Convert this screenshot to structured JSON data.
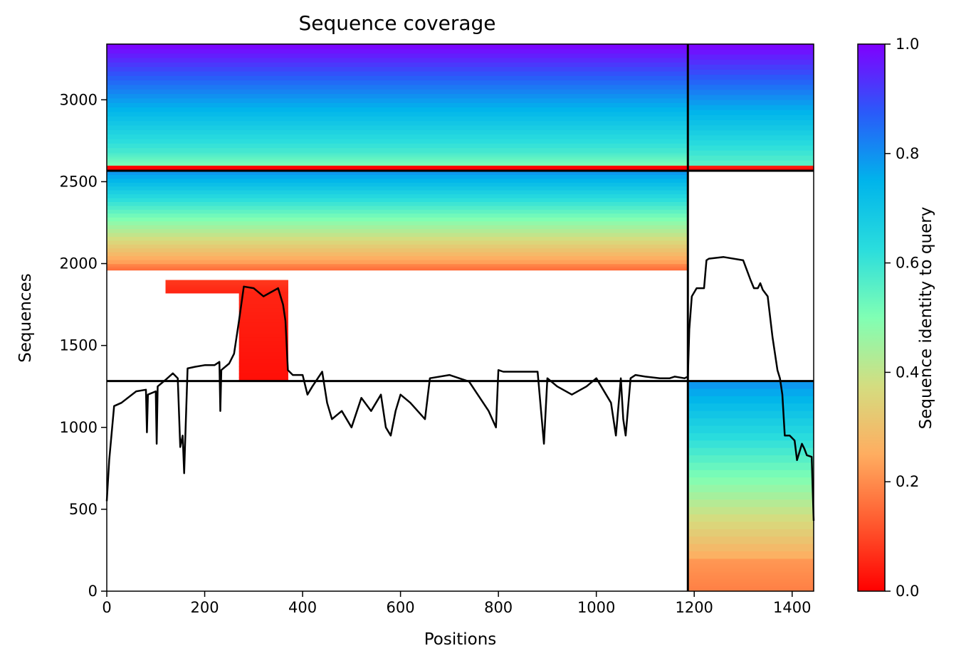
{
  "chart_data": {
    "type": "heatmap",
    "title": "Sequence coverage",
    "xlabel": "Positions",
    "ylabel": "Sequences",
    "xlim": [
      0,
      1444
    ],
    "ylim": [
      0,
      3340
    ],
    "xticks": [
      "0",
      "200",
      "400",
      "600",
      "800",
      "1000",
      "1200",
      "1400"
    ],
    "yticks": [
      "0",
      "500",
      "1000",
      "1500",
      "2000",
      "2500",
      "3000"
    ],
    "colorbar": {
      "label": "Sequence identity to query",
      "ticks": [
        "0.0",
        "0.2",
        "0.4",
        "0.6",
        "0.8",
        "1.0"
      ],
      "range": [
        0,
        1
      ],
      "colormap": "rainbow"
    },
    "chain_boundaries_x": [
      1187
    ],
    "chain_boundaries_y": [
      1283,
      2567
    ],
    "coverage_blocks": [
      {
        "x0": 0,
        "x1": 1187,
        "y0": 2567,
        "y1": 2600,
        "identity_lo": 0.0,
        "identity_hi": 0.0
      },
      {
        "x0": 0,
        "x1": 1187,
        "y0": 2600,
        "y1": 2680,
        "identity_lo": 0.5,
        "identity_hi": 0.58
      },
      {
        "x0": 0,
        "x1": 1187,
        "y0": 2680,
        "y1": 3340,
        "identity_lo": 0.58,
        "identity_hi": 1.0
      },
      {
        "x0": 1187,
        "x1": 1444,
        "y0": 2567,
        "y1": 2600,
        "identity_lo": 0.0,
        "identity_hi": 0.05
      },
      {
        "x0": 1187,
        "x1": 1444,
        "y0": 2600,
        "y1": 3340,
        "identity_lo": 0.55,
        "identity_hi": 1.0
      },
      {
        "x0": 0,
        "x1": 1187,
        "y0": 1960,
        "y1": 2000,
        "identity_lo": 0.15,
        "identity_hi": 0.2
      },
      {
        "x0": 0,
        "x1": 1187,
        "y0": 2000,
        "y1": 2567,
        "identity_lo": 0.22,
        "identity_hi": 0.8
      },
      {
        "x0": 120,
        "x1": 370,
        "y0": 1820,
        "y1": 1900,
        "identity_lo": 0.05,
        "identity_hi": 0.08
      },
      {
        "x0": 270,
        "x1": 370,
        "y0": 1283,
        "y1": 1820,
        "identity_lo": 0.02,
        "identity_hi": 0.05
      },
      {
        "x0": 1187,
        "x1": 1444,
        "y0": 0,
        "y1": 200,
        "identity_lo": 0.18,
        "identity_hi": 0.22
      },
      {
        "x0": 1187,
        "x1": 1444,
        "y0": 200,
        "y1": 1283,
        "identity_lo": 0.25,
        "identity_hi": 0.8
      }
    ],
    "coverage_line": {
      "x": [
        0,
        5,
        15,
        30,
        60,
        80,
        82,
        84,
        100,
        102,
        104,
        120,
        135,
        145,
        150,
        155,
        158,
        160,
        165,
        180,
        200,
        220,
        230,
        232,
        234,
        250,
        260,
        270,
        280,
        300,
        320,
        350,
        360,
        365,
        370,
        380,
        400,
        410,
        420,
        440,
        450,
        460,
        480,
        500,
        520,
        540,
        560,
        570,
        580,
        590,
        600,
        620,
        650,
        660,
        700,
        740,
        780,
        795,
        800,
        810,
        850,
        880,
        893,
        900,
        920,
        950,
        980,
        1000,
        1030,
        1040,
        1050,
        1055,
        1060,
        1070,
        1080,
        1100,
        1130,
        1150,
        1160,
        1180,
        1187
      ],
      "y": [
        550,
        800,
        1130,
        1150,
        1220,
        1230,
        970,
        1200,
        1220,
        900,
        1250,
        1290,
        1330,
        1300,
        880,
        950,
        720,
        900,
        1360,
        1370,
        1380,
        1380,
        1400,
        1100,
        1350,
        1390,
        1450,
        1650,
        1860,
        1850,
        1800,
        1850,
        1750,
        1650,
        1350,
        1320,
        1320,
        1200,
        1250,
        1340,
        1150,
        1050,
        1100,
        1000,
        1180,
        1100,
        1200,
        1000,
        950,
        1100,
        1200,
        1150,
        1050,
        1300,
        1320,
        1280,
        1100,
        1000,
        1350,
        1340,
        1340,
        1340,
        900,
        1300,
        1250,
        1200,
        1250,
        1300,
        1150,
        950,
        1300,
        1050,
        950,
        1300,
        1320,
        1310,
        1300,
        1300,
        1310,
        1300,
        1310
      ]
    },
    "coverage_line_chain2": {
      "x": [
        1187,
        1190,
        1195,
        1205,
        1220,
        1225,
        1230,
        1260,
        1300,
        1315,
        1322,
        1330,
        1335,
        1340,
        1350,
        1360,
        1370,
        1375,
        1380,
        1385,
        1395,
        1405,
        1410,
        1420,
        1425,
        1430,
        1440,
        1444
      ],
      "y": [
        1310,
        1600,
        1800,
        1850,
        1850,
        2020,
        2030,
        2040,
        2020,
        1900,
        1850,
        1850,
        1880,
        1840,
        1800,
        1550,
        1350,
        1300,
        1200,
        950,
        950,
        920,
        800,
        900,
        870,
        830,
        820,
        430
      ]
    }
  }
}
